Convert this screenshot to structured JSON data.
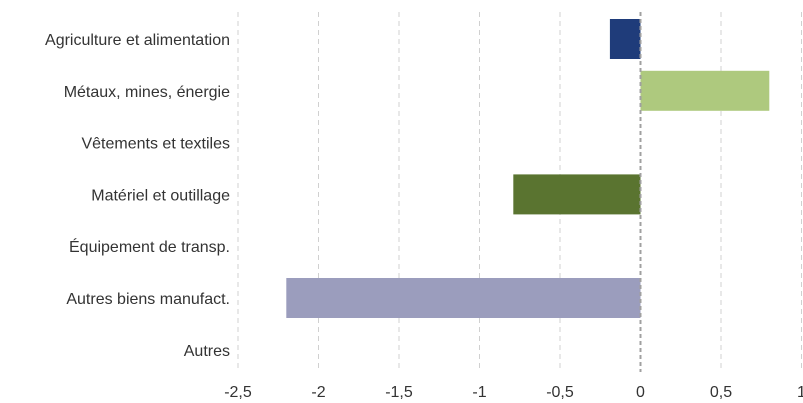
{
  "chart_data": {
    "type": "bar",
    "orientation": "horizontal",
    "categories": [
      "Agriculture et alimentation",
      "Métaux, mines, énergie",
      "Vêtements et textiles",
      "Matériel et outillage",
      "Équipement de transp.",
      "Autres biens manufact.",
      "Autres"
    ],
    "values": [
      -0.19,
      0.8,
      0,
      -0.79,
      0,
      -2.2,
      0
    ],
    "colors": [
      "#1f3c7a",
      "#aec97e",
      "#aec97e",
      "#5a7430",
      "#5a7430",
      "#9b9dbd",
      "#9b9dbd"
    ],
    "xlim": [
      -2.5,
      1
    ],
    "xticks": [
      -2.5,
      -2,
      -1.5,
      -1,
      -0.5,
      0,
      0.5,
      1
    ],
    "xtick_labels": [
      "-2,5",
      "-2",
      "-1,5",
      "-1",
      "-0,5",
      "0",
      "0,5",
      "1"
    ],
    "grid": "vertical-dashed",
    "title": "",
    "xlabel": "",
    "ylabel": ""
  }
}
